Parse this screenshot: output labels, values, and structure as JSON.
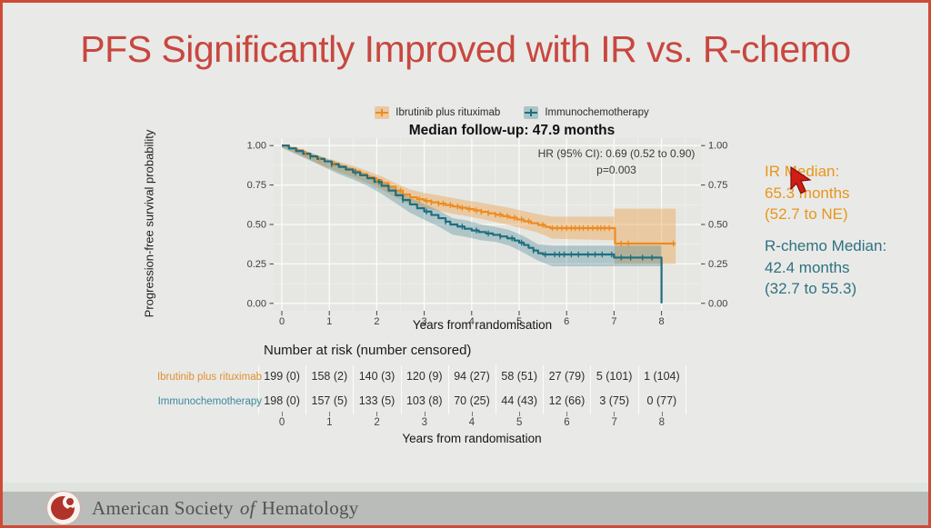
{
  "slide": {
    "title": "PFS Significantly Improved with IR vs. R-chemo",
    "title_color": "#c8473f",
    "background_color": "#e9eae7",
    "border_color": "#cf4a36"
  },
  "chart": {
    "legend": [
      {
        "label": "Ibrutinib plus rituximab",
        "color": "#ee8b1e",
        "key_fill": "rgba(238,139,30,0.35)"
      },
      {
        "label": "Immunochemotherapy",
        "color": "#1f6e80",
        "key_fill": "rgba(31,110,128,0.30)"
      }
    ],
    "subtitle": "Median follow-up: 47.9 months",
    "hr_line1": "HR (95% CI): 0.69 (0.52 to 0.90)",
    "hr_line2": "p=0.003",
    "y_label": "Progression-free survival probability",
    "x_label": "Years from randomisation"
  },
  "annotations": {
    "ir": {
      "line1": "IR Median:",
      "line2": "65.3 months",
      "line3": "(52.7 to NE)",
      "color": "#e8951c"
    },
    "rchemo": {
      "line1": "R-chemo Median:",
      "line2": "42.4 months",
      "line3": "(32.7 to 55.3)",
      "color": "#2f7181"
    }
  },
  "risk_table": {
    "header": "Number at risk (number censored)",
    "x_label": "Years from randomisation",
    "tick_labels": [
      "0",
      "1",
      "2",
      "3",
      "4",
      "5",
      "6",
      "7",
      "8"
    ],
    "rows": [
      {
        "label": "Ibrutinib plus rituximab",
        "color": "#e08e33",
        "values": [
          "199 (0)",
          "158 (2)",
          "140 (3)",
          "120 (9)",
          "94 (27)",
          "58 (51)",
          "27 (79)",
          "5 (101)",
          "1 (104)"
        ]
      },
      {
        "label": "Immunochemotherapy",
        "color": "#3b87a0",
        "values": [
          "198 (0)",
          "157 (5)",
          "133 (5)",
          "103 (8)",
          "70 (25)",
          "44 (43)",
          "12 (66)",
          "3 (75)",
          "0 (77)"
        ]
      }
    ]
  },
  "footer": {
    "org_1": "American Society",
    "org_of": "of",
    "org_2": "Hematology"
  },
  "chart_data": {
    "type": "line",
    "subtype": "kaplan-meier-step",
    "title": "Median follow-up: 47.9 months",
    "xlabel": "Years from randomisation",
    "ylabel": "Progression-free survival probability",
    "xlim": [
      -0.17,
      8.83
    ],
    "ylim": [
      0,
      1
    ],
    "x_ticks": [
      0,
      1,
      2,
      3,
      4,
      5,
      6,
      7,
      8
    ],
    "y_ticks": [
      0,
      0.25,
      0.5,
      0.75,
      1.0
    ],
    "y_tick_labels": [
      "0.00",
      "0.25",
      "0.50",
      "0.75",
      "1.00"
    ],
    "grid": true,
    "legend_position": "top",
    "annotations": {
      "hr": "HR (95% CI): 0.69 (0.52 to 0.90)",
      "p": "p=0.003"
    },
    "series": [
      {
        "name": "Ibrutinib plus rituximab",
        "color": "#ee8b1e",
        "band_color": "rgba(238,139,30,0.33)",
        "median_months": 65.3,
        "median_ci": "52.7 to NE",
        "steps": [
          [
            0,
            1.0
          ],
          [
            0.15,
            0.985
          ],
          [
            0.3,
            0.97
          ],
          [
            0.45,
            0.95
          ],
          [
            0.6,
            0.93
          ],
          [
            0.75,
            0.915
          ],
          [
            0.9,
            0.9
          ],
          [
            1.05,
            0.885
          ],
          [
            1.2,
            0.868
          ],
          [
            1.35,
            0.852
          ],
          [
            1.5,
            0.838
          ],
          [
            1.65,
            0.82
          ],
          [
            1.8,
            0.8
          ],
          [
            1.95,
            0.782
          ],
          [
            2.1,
            0.762
          ],
          [
            2.25,
            0.74
          ],
          [
            2.4,
            0.715
          ],
          [
            2.55,
            0.69
          ],
          [
            2.7,
            0.672
          ],
          [
            2.85,
            0.66
          ],
          [
            3.0,
            0.649
          ],
          [
            3.15,
            0.64
          ],
          [
            3.3,
            0.632
          ],
          [
            3.45,
            0.623
          ],
          [
            3.6,
            0.614
          ],
          [
            3.75,
            0.606
          ],
          [
            3.9,
            0.598
          ],
          [
            4.05,
            0.589
          ],
          [
            4.2,
            0.58
          ],
          [
            4.35,
            0.571
          ],
          [
            4.5,
            0.562
          ],
          [
            4.65,
            0.553
          ],
          [
            4.8,
            0.543
          ],
          [
            4.95,
            0.532
          ],
          [
            5.1,
            0.52
          ],
          [
            5.25,
            0.508
          ],
          [
            5.4,
            0.497
          ],
          [
            5.55,
            0.485
          ],
          [
            5.65,
            0.477
          ],
          [
            7.0,
            0.477
          ],
          [
            7.02,
            0.379
          ],
          [
            8.3,
            0.379
          ]
        ],
        "band": [
          [
            0,
            0.99,
            1.0
          ],
          [
            0.3,
            0.95,
            0.988
          ],
          [
            0.6,
            0.908,
            0.952
          ],
          [
            0.9,
            0.868,
            0.925
          ],
          [
            1.2,
            0.832,
            0.898
          ],
          [
            1.5,
            0.8,
            0.872
          ],
          [
            1.8,
            0.762,
            0.84
          ],
          [
            2.1,
            0.722,
            0.805
          ],
          [
            2.4,
            0.672,
            0.762
          ],
          [
            2.7,
            0.628,
            0.722
          ],
          [
            3.0,
            0.605,
            0.7
          ],
          [
            3.3,
            0.588,
            0.685
          ],
          [
            3.6,
            0.568,
            0.668
          ],
          [
            3.9,
            0.552,
            0.652
          ],
          [
            4.2,
            0.535,
            0.638
          ],
          [
            4.5,
            0.515,
            0.622
          ],
          [
            4.8,
            0.495,
            0.605
          ],
          [
            5.1,
            0.472,
            0.585
          ],
          [
            5.4,
            0.448,
            0.565
          ],
          [
            5.7,
            0.41,
            0.55
          ],
          [
            7.0,
            0.4,
            0.55
          ],
          [
            7.0,
            0.25,
            0.6
          ],
          [
            8.3,
            0.25,
            0.6
          ]
        ],
        "censors": [
          0.5,
          0.8,
          1.1,
          1.55,
          2.0,
          2.5,
          2.9,
          3.05,
          3.15,
          3.3,
          3.4,
          3.55,
          3.7,
          3.8,
          3.95,
          4.1,
          4.2,
          4.35,
          4.5,
          4.6,
          4.75,
          4.9,
          5.05,
          5.2,
          5.5,
          5.7,
          5.8,
          5.9,
          6.0,
          6.1,
          6.18,
          6.27,
          6.35,
          6.45,
          6.55,
          6.65,
          6.72,
          6.8,
          6.9,
          7.15,
          7.3,
          8.25
        ]
      },
      {
        "name": "Immunochemotherapy",
        "color": "#1f6e80",
        "band_color": "rgba(31,110,128,0.28)",
        "median_months": 42.4,
        "median_ci": "32.7 to 55.3",
        "steps": [
          [
            0,
            1.0
          ],
          [
            0.15,
            0.982
          ],
          [
            0.3,
            0.965
          ],
          [
            0.45,
            0.948
          ],
          [
            0.6,
            0.932
          ],
          [
            0.75,
            0.916
          ],
          [
            0.9,
            0.9
          ],
          [
            1.05,
            0.882
          ],
          [
            1.2,
            0.865
          ],
          [
            1.35,
            0.848
          ],
          [
            1.5,
            0.83
          ],
          [
            1.65,
            0.812
          ],
          [
            1.8,
            0.793
          ],
          [
            1.95,
            0.77
          ],
          [
            2.1,
            0.745
          ],
          [
            2.25,
            0.715
          ],
          [
            2.4,
            0.685
          ],
          [
            2.55,
            0.655
          ],
          [
            2.7,
            0.627
          ],
          [
            2.85,
            0.603
          ],
          [
            3.0,
            0.582
          ],
          [
            3.15,
            0.56
          ],
          [
            3.3,
            0.54
          ],
          [
            3.45,
            0.518
          ],
          [
            3.55,
            0.5
          ],
          [
            3.7,
            0.487
          ],
          [
            3.85,
            0.473
          ],
          [
            4.0,
            0.462
          ],
          [
            4.15,
            0.452
          ],
          [
            4.3,
            0.443
          ],
          [
            4.45,
            0.434
          ],
          [
            4.6,
            0.424
          ],
          [
            4.75,
            0.412
          ],
          [
            4.9,
            0.398
          ],
          [
            5.0,
            0.385
          ],
          [
            5.1,
            0.37
          ],
          [
            5.2,
            0.352
          ],
          [
            5.3,
            0.335
          ],
          [
            5.4,
            0.318
          ],
          [
            5.5,
            0.31
          ],
          [
            7.0,
            0.29
          ],
          [
            8.0,
            0.29
          ],
          [
            8.0,
            0.0
          ]
        ],
        "band": [
          [
            0,
            0.985,
            1.0
          ],
          [
            0.3,
            0.945,
            0.985
          ],
          [
            0.6,
            0.905,
            0.955
          ],
          [
            0.9,
            0.862,
            0.92
          ],
          [
            1.2,
            0.82,
            0.885
          ],
          [
            1.5,
            0.785,
            0.855
          ],
          [
            1.8,
            0.745,
            0.82
          ],
          [
            2.1,
            0.695,
            0.78
          ],
          [
            2.4,
            0.635,
            0.725
          ],
          [
            2.7,
            0.575,
            0.67
          ],
          [
            3.0,
            0.53,
            0.63
          ],
          [
            3.3,
            0.487,
            0.59
          ],
          [
            3.6,
            0.435,
            0.54
          ],
          [
            3.9,
            0.42,
            0.525
          ],
          [
            4.2,
            0.4,
            0.5
          ],
          [
            4.5,
            0.39,
            0.485
          ],
          [
            4.8,
            0.365,
            0.465
          ],
          [
            5.1,
            0.32,
            0.425
          ],
          [
            5.4,
            0.27,
            0.375
          ],
          [
            5.7,
            0.235,
            0.365
          ],
          [
            8.0,
            0.235,
            0.365
          ]
        ],
        "censors": [
          0.6,
          1.05,
          1.55,
          2.05,
          2.55,
          3.05,
          3.45,
          3.8,
          4.1,
          4.35,
          4.6,
          4.85,
          5.05,
          5.3,
          5.55,
          5.75,
          5.85,
          5.95,
          6.1,
          6.25,
          6.45,
          6.6,
          6.75,
          6.95,
          7.15,
          7.35,
          7.6,
          7.8
        ]
      }
    ]
  }
}
